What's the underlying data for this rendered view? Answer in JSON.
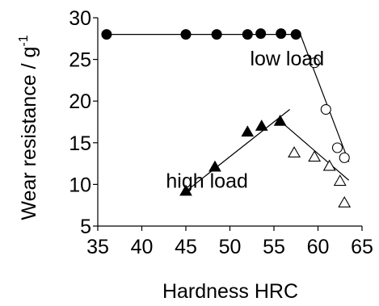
{
  "chart_data": {
    "type": "scatter",
    "xlabel": "Hardness HRC",
    "ylabel_main": "Wear resistance / g",
    "ylabel_superscript": "-1",
    "xlim": [
      35,
      65
    ],
    "ylim": [
      5,
      30
    ],
    "x_ticks": [
      35,
      40,
      45,
      50,
      55,
      60,
      65
    ],
    "y_ticks": [
      5,
      10,
      15,
      20,
      25,
      30
    ],
    "grid": false,
    "annotations": [
      {
        "id": "low",
        "text": "low load",
        "x": 56.5,
        "y": 24.3
      },
      {
        "id": "high",
        "text": "high load",
        "x": 47.4,
        "y": 9.6
      }
    ],
    "series": [
      {
        "marker": "filled-circle",
        "points": [
          [
            36,
            28
          ],
          [
            45,
            28
          ],
          [
            48.5,
            28
          ],
          [
            52,
            28
          ],
          [
            53.5,
            28.1
          ],
          [
            55.8,
            28.1
          ],
          [
            57.5,
            28
          ]
        ]
      },
      {
        "marker": "open-circle",
        "points": [
          [
            59.6,
            24.6
          ],
          [
            60.9,
            19
          ],
          [
            62.2,
            14.4
          ],
          [
            63,
            13.2
          ]
        ]
      },
      {
        "marker": "filled-triangle",
        "points": [
          [
            45,
            9.2
          ],
          [
            48.3,
            12.1
          ],
          [
            52,
            16.3
          ],
          [
            53.6,
            17
          ],
          [
            55.7,
            17.6
          ]
        ]
      },
      {
        "marker": "open-triangle",
        "points": [
          [
            57.3,
            13.8
          ],
          [
            59.6,
            13.3
          ],
          [
            61.3,
            12.2
          ],
          [
            62.5,
            10.4
          ],
          [
            63,
            7.8
          ]
        ]
      }
    ],
    "fit_lines": [
      [
        [
          36,
          28
        ],
        [
          58,
          28
        ]
      ],
      [
        [
          58,
          28
        ],
        [
          63.5,
          12.7
        ]
      ],
      [
        [
          44.8,
          9
        ],
        [
          56.8,
          19
        ]
      ],
      [
        [
          55.5,
          17.8
        ],
        [
          63.5,
          10.5
        ]
      ]
    ]
  }
}
